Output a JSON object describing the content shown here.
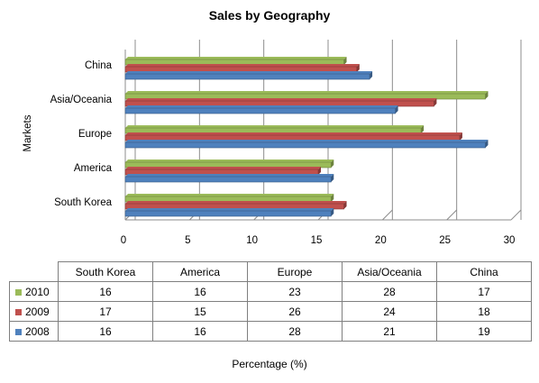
{
  "chart_data": {
    "type": "bar",
    "orientation": "horizontal",
    "title": "Sales by Geography",
    "ylabel": "Markets",
    "xlabel": "Percentage (%)",
    "categories": [
      "South Korea",
      "America",
      "Europe",
      "Asia/Oceania",
      "China"
    ],
    "xlim": [
      0,
      30
    ],
    "xticks": [
      "0",
      "5",
      "10",
      "15",
      "20",
      "25",
      "30"
    ],
    "grid": true,
    "series": [
      {
        "name": "2010",
        "color": "#9bbb59",
        "values": [
          16,
          16,
          23,
          28,
          17
        ]
      },
      {
        "name": "2009",
        "color": "#c0504d",
        "values": [
          17,
          15,
          26,
          24,
          18
        ]
      },
      {
        "name": "2008",
        "color": "#4f81bd",
        "values": [
          16,
          16,
          28,
          21,
          19
        ]
      }
    ]
  }
}
